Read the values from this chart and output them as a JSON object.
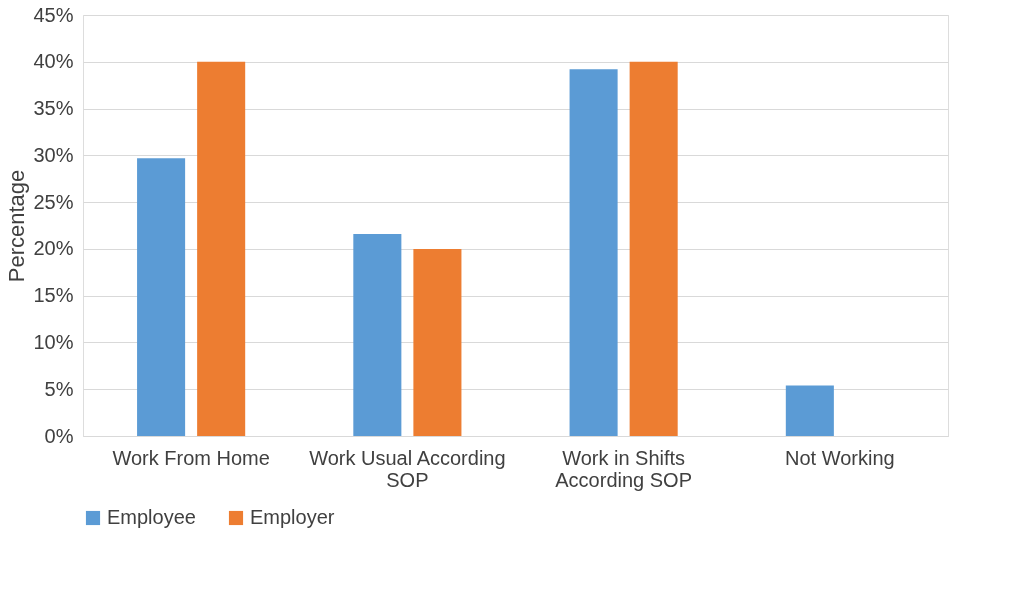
{
  "chart_data": {
    "type": "bar",
    "ylabel": "Percentage",
    "categories": [
      "Work From Home",
      "Work Usual According SOP",
      "Work in Shifts According SOP",
      "Not Working"
    ],
    "series": [
      {
        "name": "Employee",
        "color": "#5b9bd5",
        "values": [
          29.7,
          21.6,
          39.2,
          5.4
        ]
      },
      {
        "name": "Employer",
        "color": "#ed7d31",
        "values": [
          40,
          20,
          40,
          0
        ]
      }
    ],
    "ylim": [
      0,
      45
    ],
    "yticks": [
      {
        "value": 0,
        "label": "0%"
      },
      {
        "value": 5,
        "label": "5%"
      },
      {
        "value": 10,
        "label": "10%"
      },
      {
        "value": 15,
        "label": "15%"
      },
      {
        "value": 20,
        "label": "20%"
      },
      {
        "value": 25,
        "label": "25%"
      },
      {
        "value": 30,
        "label": "30%"
      },
      {
        "value": 35,
        "label": "35%"
      },
      {
        "value": 40,
        "label": "40%"
      },
      {
        "value": 45,
        "label": "45%"
      }
    ],
    "grid": "y",
    "legend": "bottom"
  }
}
